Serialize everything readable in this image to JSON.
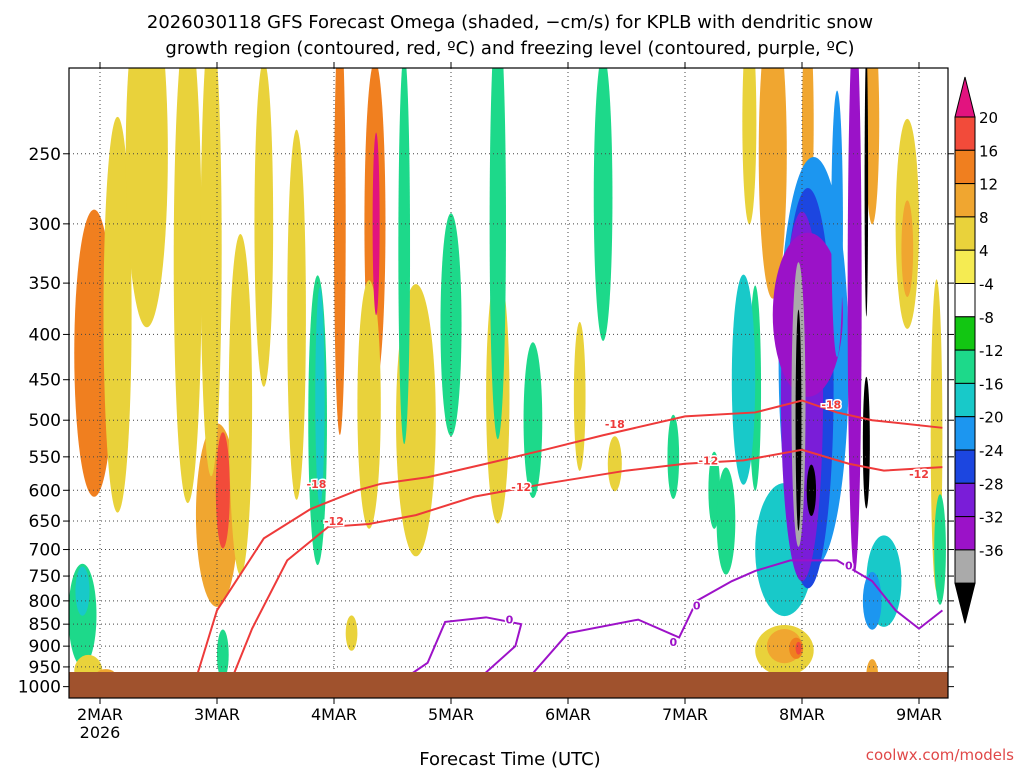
{
  "chart_data": {
    "type": "heatmap",
    "title_line1": "2026030118 GFS Forecast Omega (shaded, −cm/s) for KPLB with dendritic snow",
    "title_line2": "growth region (contoured, red, ºC) and freezing level (contoured, purple, ºC)",
    "xlabel": "Forecast Time (UTC)",
    "ylabel": "",
    "credit": "coolwx.com/models",
    "x_ticks": [
      {
        "day": 0,
        "label": "2MAR",
        "sub": "2026"
      },
      {
        "day": 1,
        "label": "3MAR"
      },
      {
        "day": 2,
        "label": "4MAR"
      },
      {
        "day": 3,
        "label": "5MAR"
      },
      {
        "day": 4,
        "label": "6MAR"
      },
      {
        "day": 5,
        "label": "7MAR"
      },
      {
        "day": 6,
        "label": "8MAR"
      },
      {
        "day": 7,
        "label": "9MAR"
      }
    ],
    "y_ticks": [
      250,
      300,
      350,
      400,
      450,
      500,
      550,
      600,
      650,
      700,
      750,
      800,
      850,
      900,
      950,
      1000
    ],
    "x_range_days": [
      -0.22,
      7.22
    ],
    "y_range_hpa": [
      200,
      1030
    ],
    "colorbar": {
      "labels": [
        "20",
        "16",
        "12",
        "8",
        "4",
        "-4",
        "-8",
        "-12",
        "-16",
        "-20",
        "-24",
        "-28",
        "-32",
        "-36"
      ],
      "colors": [
        "#e2137f",
        "#f24b3a",
        "#f07f1f",
        "#f0a630",
        "#e9d23b",
        "#f5eb52",
        "#ffffff",
        "#12c612",
        "#1dd98a",
        "#18c9c9",
        "#1c96f0",
        "#1c46e0",
        "#7a1dd8",
        "#9b12c8",
        "#aaaaaa",
        "#000000"
      ]
    },
    "contours": [
      {
        "name": "dendritic -18C",
        "color": "#ee3a3a",
        "label": "-18",
        "points": [
          [
            0.8,
            1000
          ],
          [
            1.0,
            820
          ],
          [
            1.4,
            680
          ],
          [
            1.8,
            630
          ],
          [
            2.2,
            600
          ],
          [
            2.4,
            590
          ],
          [
            2.8,
            580
          ],
          [
            3.3,
            560
          ],
          [
            3.8,
            540
          ],
          [
            4.3,
            520
          ],
          [
            5.0,
            495
          ],
          [
            5.6,
            490
          ],
          [
            6.0,
            475
          ],
          [
            6.3,
            490
          ],
          [
            6.6,
            500
          ],
          [
            7.2,
            510
          ]
        ],
        "label_at": [
          [
            1.85,
            590
          ],
          [
            4.4,
            505
          ],
          [
            6.25,
            480
          ]
        ]
      },
      {
        "name": "dendritic -12C",
        "color": "#ee3a3a",
        "label": "-12",
        "points": [
          [
            1.1,
            1000
          ],
          [
            1.3,
            860
          ],
          [
            1.6,
            720
          ],
          [
            1.95,
            660
          ],
          [
            2.3,
            655
          ],
          [
            2.7,
            640
          ],
          [
            3.2,
            610
          ],
          [
            3.8,
            590
          ],
          [
            4.5,
            570
          ],
          [
            5.0,
            560
          ],
          [
            5.5,
            555
          ],
          [
            6.0,
            540
          ],
          [
            6.4,
            560
          ],
          [
            6.7,
            570
          ],
          [
            7.2,
            565
          ]
        ],
        "label_at": [
          [
            2.0,
            650
          ],
          [
            3.6,
            595
          ],
          [
            5.2,
            555
          ],
          [
            7.0,
            575
          ]
        ]
      },
      {
        "name": "freezing level 0C",
        "color": "#9d12c8",
        "label": "0",
        "points": [
          [
            2.5,
            1000
          ],
          [
            2.8,
            940
          ],
          [
            2.95,
            845
          ],
          [
            3.3,
            835
          ],
          [
            3.6,
            850
          ],
          [
            3.55,
            900
          ],
          [
            3.2,
            990
          ],
          [
            3.6,
            1000
          ],
          [
            4.0,
            870
          ],
          [
            4.6,
            840
          ],
          [
            4.95,
            880
          ],
          [
            5.1,
            800
          ],
          [
            5.4,
            760
          ],
          [
            5.6,
            740
          ],
          [
            5.9,
            720
          ],
          [
            6.3,
            720
          ],
          [
            6.6,
            760
          ],
          [
            6.8,
            820
          ],
          [
            7.0,
            860
          ],
          [
            7.2,
            820
          ]
        ],
        "label_at": [
          [
            3.5,
            840
          ],
          [
            4.9,
            890
          ],
          [
            5.1,
            810
          ],
          [
            6.4,
            730
          ]
        ]
      }
    ],
    "shaded_blobs": [
      {
        "x": -0.05,
        "p": 420,
        "rx": 0.17,
        "rp": 150,
        "v": 12
      },
      {
        "x": 0.15,
        "p": 380,
        "rx": 0.12,
        "rp": 180,
        "v": 4
      },
      {
        "x": 0.4,
        "p": 250,
        "rx": 0.18,
        "rp": 120,
        "v": 4
      },
      {
        "x": 0.75,
        "p": 330,
        "rx": 0.12,
        "rp": 200,
        "v": 4
      },
      {
        "x": 1.0,
        "p": 640,
        "rx": 0.18,
        "rp": 150,
        "v": 8
      },
      {
        "x": 1.05,
        "p": 600,
        "rx": 0.06,
        "rp": 90,
        "v": 16
      },
      {
        "x": 0.95,
        "p": 320,
        "rx": 0.09,
        "rp": 170,
        "v": 4
      },
      {
        "x": 1.2,
        "p": 480,
        "rx": 0.1,
        "rp": 200,
        "v": 4
      },
      {
        "x": 1.4,
        "p": 300,
        "rx": 0.08,
        "rp": 120,
        "v": 4
      },
      {
        "x": 1.68,
        "p": 380,
        "rx": 0.08,
        "rp": 170,
        "v": 4
      },
      {
        "x": 2.05,
        "p": 300,
        "rx": 0.05,
        "rp": 150,
        "v": 12
      },
      {
        "x": 2.35,
        "p": 300,
        "rx": 0.09,
        "rp": 120,
        "v": 12
      },
      {
        "x": 2.3,
        "p": 480,
        "rx": 0.1,
        "rp": 150,
        "v": 4
      },
      {
        "x": 2.36,
        "p": 300,
        "rx": 0.03,
        "rp": 70,
        "v": 20
      },
      {
        "x": 2.7,
        "p": 500,
        "rx": 0.17,
        "rp": 170,
        "v": 4
      },
      {
        "x": 3.4,
        "p": 470,
        "rx": 0.1,
        "rp": 150,
        "v": 4
      },
      {
        "x": -0.15,
        "p": 830,
        "rx": 0.12,
        "rp": 110,
        "v": -8
      },
      {
        "x": -0.15,
        "p": 780,
        "rx": 0.06,
        "rp": 50,
        "v": -12
      },
      {
        "x": 0.9,
        "p": 140,
        "rx": 0.1,
        "rp": 80,
        "v": -8
      },
      {
        "x": 1.05,
        "p": 920,
        "rx": 0.05,
        "rp": 60,
        "v": -8
      },
      {
        "x": 1.86,
        "p": 500,
        "rx": 0.08,
        "rp": 180,
        "v": -8
      },
      {
        "x": 1.88,
        "p": 470,
        "rx": 0.04,
        "rp": 130,
        "v": -12
      },
      {
        "x": 2.6,
        "p": 320,
        "rx": 0.05,
        "rp": 150,
        "v": -8
      },
      {
        "x": 3.0,
        "p": 390,
        "rx": 0.09,
        "rp": 110,
        "v": -8
      },
      {
        "x": 3.4,
        "p": 300,
        "rx": 0.07,
        "rp": 160,
        "v": -8
      },
      {
        "x": 3.7,
        "p": 500,
        "rx": 0.08,
        "rp": 100,
        "v": -8
      },
      {
        "x": 4.3,
        "p": 280,
        "rx": 0.08,
        "rp": 100,
        "v": -8
      },
      {
        "x": 4.9,
        "p": 550,
        "rx": 0.05,
        "rp": 60,
        "v": -8
      },
      {
        "x": 5.25,
        "p": 600,
        "rx": 0.05,
        "rp": 60,
        "v": -8
      },
      {
        "x": 5.55,
        "p": 230,
        "rx": 0.06,
        "rp": 60,
        "v": 4
      },
      {
        "x": 5.75,
        "p": 250,
        "rx": 0.12,
        "rp": 90,
        "v": 8
      },
      {
        "x": 6.05,
        "p": 230,
        "rx": 0.05,
        "rp": 60,
        "v": 8
      },
      {
        "x": 6.6,
        "p": 230,
        "rx": 0.06,
        "rp": 60,
        "v": 8
      },
      {
        "x": 6.9,
        "p": 300,
        "rx": 0.1,
        "rp": 80,
        "v": 4
      },
      {
        "x": 6.9,
        "p": 320,
        "rx": 0.05,
        "rp": 40,
        "v": 8
      },
      {
        "x": 5.6,
        "p": 460,
        "rx": 0.05,
        "rp": 120,
        "v": -8
      },
      {
        "x": 5.5,
        "p": 450,
        "rx": 0.1,
        "rp": 120,
        "v": -12
      },
      {
        "x": 5.35,
        "p": 650,
        "rx": 0.08,
        "rp": 90,
        "v": -8
      },
      {
        "x": 5.85,
        "p": 700,
        "rx": 0.25,
        "rp": 120,
        "v": -12
      },
      {
        "x": 6.1,
        "p": 430,
        "rx": 0.3,
        "rp": 210,
        "v": -16
      },
      {
        "x": 6.05,
        "p": 460,
        "rx": 0.22,
        "rp": 220,
        "v": -20
      },
      {
        "x": 6.0,
        "p": 470,
        "rx": 0.18,
        "rp": 210,
        "v": -24
      },
      {
        "x": 6.05,
        "p": 380,
        "rx": 0.3,
        "rp": 80,
        "v": -28
      },
      {
        "x": 6.45,
        "p": 360,
        "rx": 0.06,
        "rp": 280,
        "v": -28
      },
      {
        "x": 5.97,
        "p": 480,
        "rx": 0.06,
        "rp": 170,
        "v": -32
      },
      {
        "x": 5.97,
        "p": 500,
        "rx": 0.025,
        "rp": 140,
        "v": -36
      },
      {
        "x": 6.08,
        "p": 600,
        "rx": 0.04,
        "rp": 40,
        "v": -36
      },
      {
        "x": 6.55,
        "p": 270,
        "rx": 0.015,
        "rp": 90,
        "v": -36
      },
      {
        "x": 6.55,
        "p": 530,
        "rx": 0.03,
        "rp": 90,
        "v": -36
      },
      {
        "x": 6.3,
        "p": 300,
        "rx": 0.05,
        "rp": 100,
        "v": -16
      },
      {
        "x": 6.7,
        "p": 760,
        "rx": 0.15,
        "rp": 90,
        "v": -12
      },
      {
        "x": 6.6,
        "p": 800,
        "rx": 0.08,
        "rp": 60,
        "v": -16
      },
      {
        "x": 5.85,
        "p": 910,
        "rx": 0.25,
        "rp": 60,
        "v": 4
      },
      {
        "x": 5.85,
        "p": 900,
        "rx": 0.15,
        "rp": 40,
        "v": 8
      },
      {
        "x": 5.95,
        "p": 905,
        "rx": 0.06,
        "rp": 25,
        "v": 12
      },
      {
        "x": 5.97,
        "p": 905,
        "rx": 0.025,
        "rp": 15,
        "v": 16
      },
      {
        "x": 6.6,
        "p": 970,
        "rx": 0.05,
        "rp": 40,
        "v": 8
      },
      {
        "x": 7.15,
        "p": 520,
        "rx": 0.05,
        "rp": 200,
        "v": 4
      },
      {
        "x": 7.18,
        "p": 700,
        "rx": 0.05,
        "rp": 100,
        "v": -8
      },
      {
        "x": -0.1,
        "p": 960,
        "rx": 0.12,
        "rp": 40,
        "v": 4
      },
      {
        "x": 0.05,
        "p": 980,
        "rx": 0.1,
        "rp": 25,
        "v": 8
      },
      {
        "x": 2.15,
        "p": 870,
        "rx": 0.05,
        "rp": 40,
        "v": 4
      },
      {
        "x": 4.1,
        "p": 470,
        "rx": 0.05,
        "rp": 90,
        "v": 4
      },
      {
        "x": 4.4,
        "p": 560,
        "rx": 0.06,
        "rp": 40,
        "v": 4
      }
    ],
    "ground": {
      "color": "#a0522d"
    }
  }
}
